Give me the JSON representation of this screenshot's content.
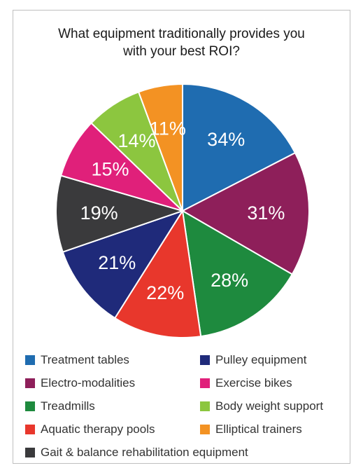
{
  "chart_data": {
    "type": "pie",
    "title_lines": [
      "What equipment traditionally provides you",
      "with your best ROI?"
    ],
    "slices": [
      {
        "name": "Treatment tables",
        "label": "34%",
        "value": 34,
        "color": "#1f6cb0"
      },
      {
        "name": "Electro-modalities",
        "label": "31%",
        "value": 31,
        "color": "#8e1f5a"
      },
      {
        "name": "Treadmills",
        "label": "28%",
        "value": 28,
        "color": "#1e8a3e"
      },
      {
        "name": "Aquatic therapy pools",
        "label": "22%",
        "value": 22,
        "color": "#e8372c"
      },
      {
        "name": "Pulley equipment",
        "label": "21%",
        "value": 21,
        "color": "#1f2a7a"
      },
      {
        "name": "Gait & balance rehabilitation equipment",
        "label": "19%",
        "value": 19,
        "color": "#3a3a3c"
      },
      {
        "name": "Exercise bikes",
        "label": "15%",
        "value": 15,
        "color": "#e0207a"
      },
      {
        "name": "Body weight support",
        "label": "14%",
        "value": 14,
        "color": "#8cc63f"
      },
      {
        "name": "Elliptical trainers",
        "label": "11%",
        "value": 11,
        "color": "#f39223"
      }
    ],
    "legend_order": [
      [
        "Treatment tables",
        "Pulley equipment"
      ],
      [
        "Electro-modalities",
        "Exercise bikes"
      ],
      [
        "Treadmills",
        "Body weight support"
      ],
      [
        "Aquatic therapy pools",
        "Elliptical trainers"
      ],
      [
        "Gait & balance rehabilitation equipment"
      ]
    ],
    "legend_placement": "bottom"
  }
}
